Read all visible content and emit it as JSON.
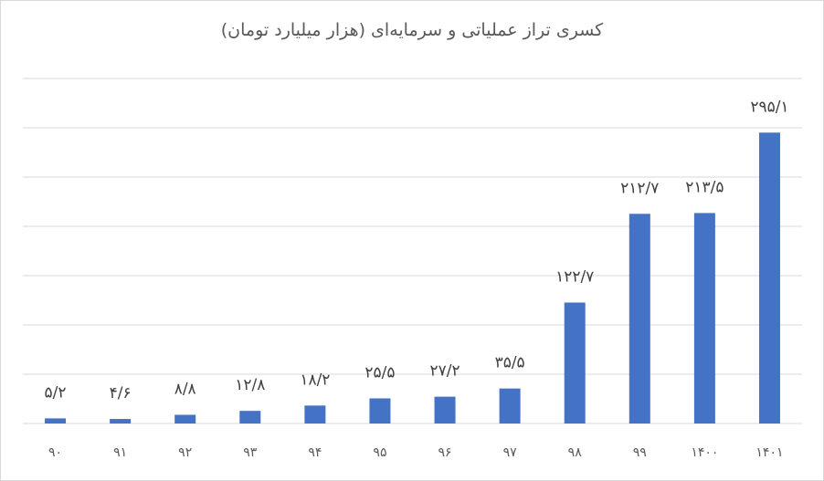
{
  "chart_data": {
    "type": "bar",
    "title": "کسری تراز عملیاتی و سرمایه‌ای (هزار میلیارد تومان)",
    "categories": [
      "۹۰",
      "۹۱",
      "۹۲",
      "۹۳",
      "۹۴",
      "۹۵",
      "۹۶",
      "۹۷",
      "۹۸",
      "۹۹",
      "۱۴۰۰",
      "۱۴۰۱"
    ],
    "values": [
      5.2,
      4.6,
      8.8,
      12.8,
      18.2,
      25.5,
      27.2,
      35.5,
      122.7,
      212.7,
      213.5,
      295.1
    ],
    "data_labels": [
      "۵/۲",
      "۴/۶",
      "۸/۸",
      "۱۲/۸",
      "۱۸/۲",
      "۲۵/۵",
      "۲۷/۲",
      "۳۵/۵",
      "۱۲۲/۷",
      "۲۱۲/۷",
      "۲۱۳/۵",
      "۲۹۵/۱"
    ],
    "ylim": [
      0,
      350
    ],
    "grid": true,
    "bar_color": "#4472c4",
    "grid_color": "#d9d9d9"
  }
}
